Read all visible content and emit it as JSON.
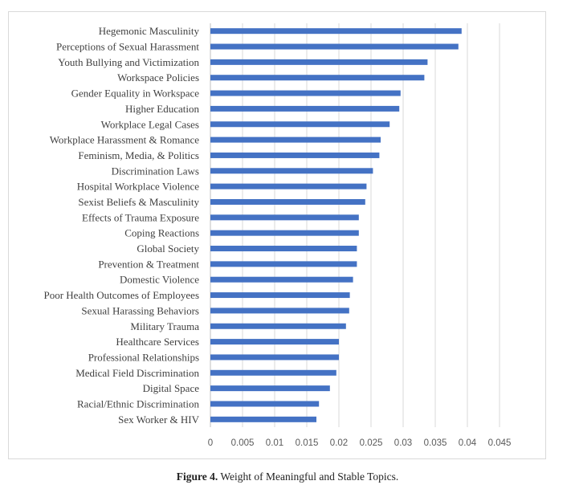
{
  "chart_data": {
    "type": "bar",
    "orientation": "horizontal",
    "categories": [
      "Hegemonic Masculinity",
      "Perceptions of Sexual Harassment",
      "Youth Bullying and Victimization",
      "Workspace Policies",
      "Gender Equality in Workspace",
      "Higher Education",
      "Workplace Legal Cases",
      "Workplace Harassment & Romance",
      "Feminism, Media, & Politics",
      "Discrimination Laws",
      "Hospital Workplace Violence",
      "Sexist Beliefs & Masculinity",
      "Effects of Trauma Exposure",
      "Coping Reactions",
      "Global Society",
      "Prevention & Treatment",
      "Domestic Violence",
      "Poor Health Outcomes of Employees",
      "Sexual Harassing Behaviors",
      "Military Trauma",
      "Healthcare Services",
      "Professional Relationships",
      "Medical Field Discrimination",
      "Digital Space",
      "Racial/Ethnic Discrimination",
      "Sex Worker & HIV"
    ],
    "values": [
      0.0391,
      0.0386,
      0.0338,
      0.0333,
      0.0296,
      0.0294,
      0.0279,
      0.0265,
      0.0263,
      0.0253,
      0.0243,
      0.0241,
      0.0231,
      0.0231,
      0.0228,
      0.0228,
      0.0222,
      0.0217,
      0.0216,
      0.0211,
      0.02,
      0.02,
      0.0196,
      0.0186,
      0.0169,
      0.0165
    ],
    "xlim": [
      0,
      0.045
    ],
    "xticks": [
      "0",
      "0.005",
      "0.01",
      "0.015",
      "0.02",
      "0.025",
      "0.03",
      "0.035",
      "0.04",
      "0.045"
    ],
    "grid": true,
    "bar_color": "#4472c4",
    "title": "",
    "xlabel": "",
    "ylabel": ""
  },
  "caption": {
    "label": "Figure 4.",
    "text": " Weight of Meaningful and Stable Topics."
  }
}
